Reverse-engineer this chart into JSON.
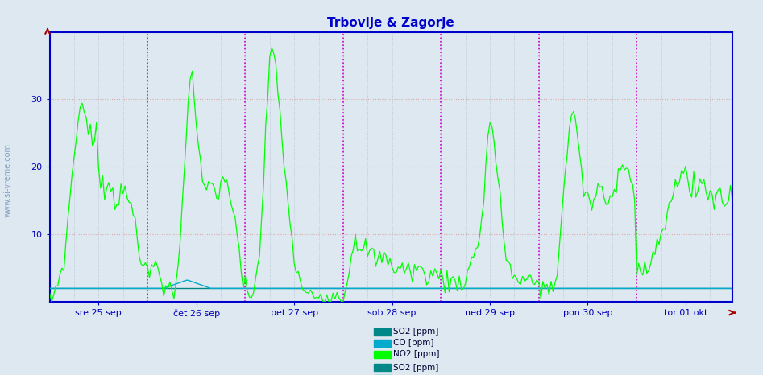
{
  "title": "Trbovlje & Zagorje",
  "title_color": "#0000cc",
  "bg_color": "#dde8f0",
  "plot_bg_color": "#dde8f0",
  "grid_color": "#b0b8cc",
  "axis_color": "#0000cc",
  "ylabel_color": "#0000bb",
  "xlabel_color": "#0000bb",
  "ylim": [
    0,
    40
  ],
  "yticks": [
    10,
    20,
    30
  ],
  "xticklabels": [
    "sre 25 sep",
    "čet 26 sep",
    "pet 27 sep",
    "sob 28 sep",
    "ned 29 sep",
    "pon 30 sep",
    "tor 01 okt"
  ],
  "n_points": 336,
  "day_lines_color": "#cc00cc",
  "watermark": "www.si-vreme.com",
  "so2_color": "#008888",
  "co_color": "#00aacc",
  "no2_color": "#00ff00",
  "legend_labels": [
    "SO2 [ppm]",
    "CO [ppm]",
    "NO2 [ppm]"
  ]
}
